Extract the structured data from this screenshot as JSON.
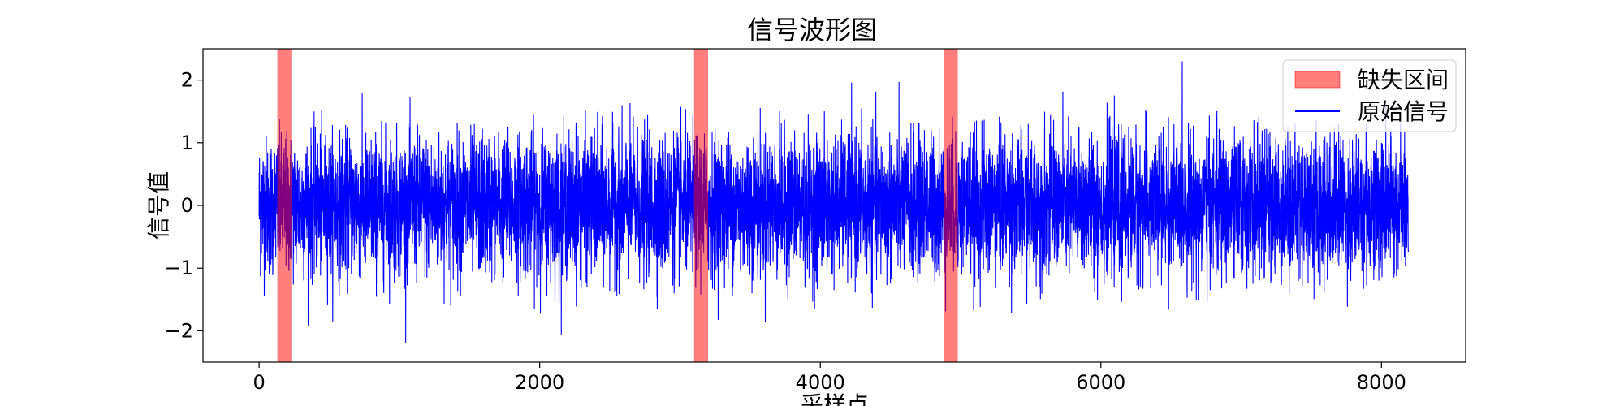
{
  "chart_data": {
    "type": "line",
    "title": "信号波形图",
    "xlabel": "采样点",
    "ylabel": "信号值",
    "xlim": [
      -400,
      8600
    ],
    "ylim": [
      -2.5,
      2.5
    ],
    "xticks": [
      0,
      2000,
      4000,
      6000,
      8000
    ],
    "xtick_labels": [
      "0",
      "2000",
      "4000",
      "6000",
      "8000"
    ],
    "yticks": [
      -2,
      -1,
      0,
      1,
      2
    ],
    "ytick_labels": [
      "−2",
      "−1",
      "0",
      "1",
      "2"
    ],
    "grid": false,
    "legend_position": "top-right",
    "n_samples": 8192,
    "series": [
      {
        "name": "原始信号",
        "color": "#0000ff",
        "noise_sigma": 0.55,
        "y_min": -2.2,
        "y_max": 2.3,
        "x_start": 0,
        "x_end": 8191
      }
    ],
    "missing_intervals": {
      "name": "缺失区间",
      "color": "#ff0000",
      "alpha": 0.5,
      "ranges": [
        [
          130,
          230
        ],
        [
          3100,
          3200
        ],
        [
          4880,
          4980
        ]
      ]
    }
  }
}
